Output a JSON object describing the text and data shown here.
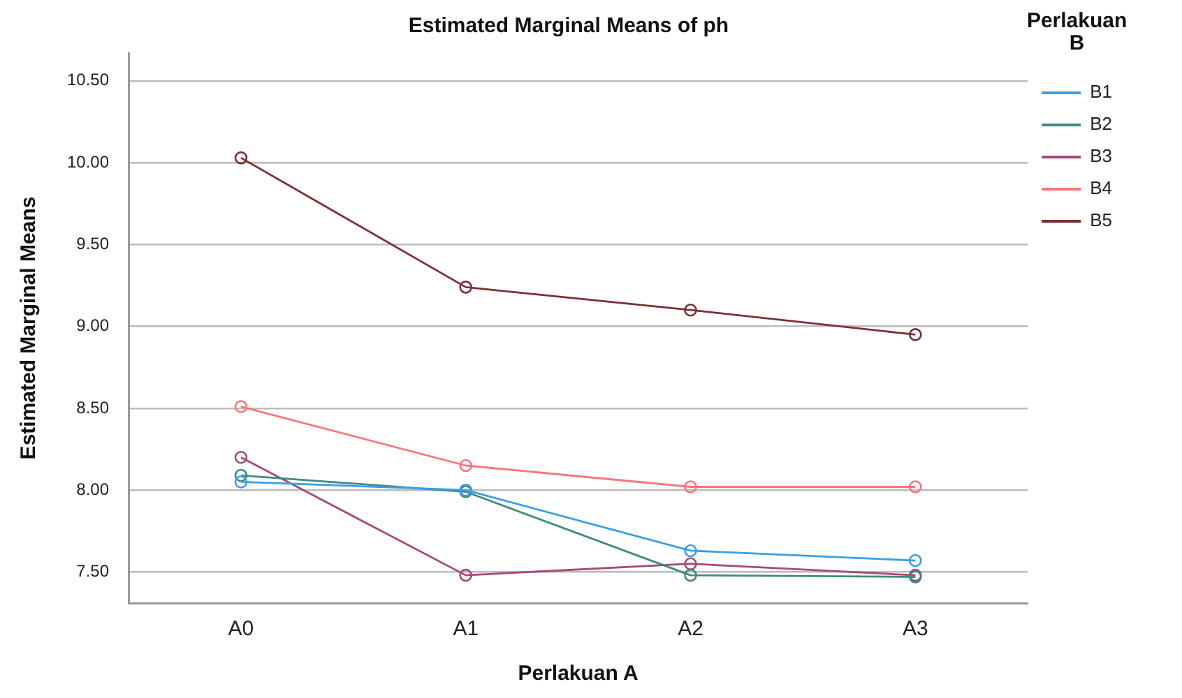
{
  "chart_data": {
    "type": "line",
    "title": "Estimated Marginal Means of ph",
    "xlabel": "Perlakuan A",
    "ylabel": "Estimated Marginal Means",
    "legend_title": "Perlakuan B",
    "categories": [
      "A0",
      "A1",
      "A2",
      "A3"
    ],
    "series": [
      {
        "name": "B1",
        "color": "#3a9ee8",
        "values": [
          8.05,
          8.0,
          7.63,
          7.57
        ]
      },
      {
        "name": "B2",
        "color": "#3f8a80",
        "values": [
          8.09,
          7.99,
          7.48,
          7.47
        ]
      },
      {
        "name": "B3",
        "color": "#a6487a",
        "values": [
          8.2,
          7.48,
          7.55,
          7.48
        ]
      },
      {
        "name": "B4",
        "color": "#f6767a",
        "values": [
          8.51,
          8.15,
          8.02,
          8.02
        ]
      },
      {
        "name": "B5",
        "color": "#7a2f33",
        "values": [
          10.03,
          9.24,
          9.1,
          8.95
        ]
      }
    ],
    "ylim": [
      7.31,
      10.67
    ],
    "yticks": [
      {
        "value": 7.5,
        "label": "7.50"
      },
      {
        "value": 8,
        "label": "8.00"
      },
      {
        "value": 8.5,
        "label": "8.50"
      },
      {
        "value": 9,
        "label": "9.00"
      },
      {
        "value": 9.5,
        "label": "9.50"
      },
      {
        "value": 10,
        "label": "10.00"
      },
      {
        "value": 10.5,
        "label": "10.50"
      }
    ],
    "grid": "y",
    "legend": "right",
    "marker": "circle",
    "line_style": "solid"
  }
}
